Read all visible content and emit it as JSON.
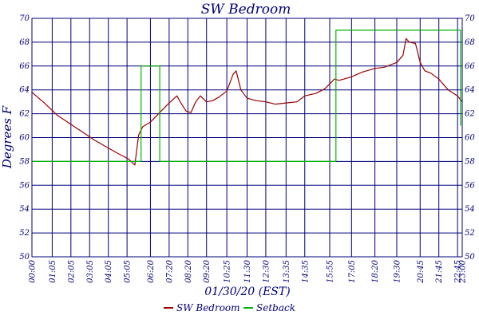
{
  "chart_data": {
    "type": "line",
    "title": "SW Bedroom",
    "ylabel": "Degrees F",
    "xlabel": "01/30/20 (EST)",
    "ylim": [
      50,
      70
    ],
    "yticks": [
      50,
      52,
      54,
      56,
      58,
      60,
      62,
      64,
      66,
      68,
      70
    ],
    "xlim": [
      "00:00",
      "23:00"
    ],
    "xticks": [
      "00:00",
      "01:05",
      "02:05",
      "03:05",
      "04:05",
      "05:05",
      "06:20",
      "07:20",
      "08:20",
      "09:20",
      "10:25",
      "11:30",
      "12:30",
      "13:35",
      "14:35",
      "15:55",
      "17:05",
      "18:20",
      "19:30",
      "20:45",
      "21:45",
      "22:45",
      "23:00"
    ],
    "grid": true,
    "legend_position": "bottom-center",
    "series": [
      {
        "name": "SW Bedroom",
        "color": "#9a0000",
        "points": [
          [
            "00:00",
            63.8
          ],
          [
            "00:40",
            62.9
          ],
          [
            "01:20",
            61.9
          ],
          [
            "02:00",
            61.2
          ],
          [
            "02:40",
            60.5
          ],
          [
            "03:20",
            59.8
          ],
          [
            "04:00",
            59.2
          ],
          [
            "04:40",
            58.6
          ],
          [
            "05:10",
            58.2
          ],
          [
            "05:30",
            57.7
          ],
          [
            "05:42",
            60.2
          ],
          [
            "05:55",
            60.9
          ],
          [
            "06:20",
            61.3
          ],
          [
            "06:50",
            62.1
          ],
          [
            "07:20",
            62.9
          ],
          [
            "07:45",
            63.5
          ],
          [
            "08:00",
            62.8
          ],
          [
            "08:15",
            62.2
          ],
          [
            "08:30",
            62.1
          ],
          [
            "08:45",
            63.0
          ],
          [
            "09:00",
            63.5
          ],
          [
            "09:20",
            63.0
          ],
          [
            "09:40",
            63.1
          ],
          [
            "10:00",
            63.4
          ],
          [
            "10:25",
            63.9
          ],
          [
            "10:45",
            65.3
          ],
          [
            "10:55",
            65.6
          ],
          [
            "11:10",
            64.0
          ],
          [
            "11:30",
            63.3
          ],
          [
            "12:00",
            63.1
          ],
          [
            "12:30",
            63.0
          ],
          [
            "13:00",
            62.8
          ],
          [
            "13:35",
            62.9
          ],
          [
            "14:10",
            63.0
          ],
          [
            "14:35",
            63.5
          ],
          [
            "15:10",
            63.7
          ],
          [
            "15:40",
            64.1
          ],
          [
            "15:55",
            64.5
          ],
          [
            "16:10",
            64.9
          ],
          [
            "16:25",
            64.8
          ],
          [
            "16:40",
            64.9
          ],
          [
            "17:05",
            65.1
          ],
          [
            "17:40",
            65.5
          ],
          [
            "18:20",
            65.8
          ],
          [
            "18:50",
            65.9
          ],
          [
            "19:30",
            66.3
          ],
          [
            "19:50",
            66.9
          ],
          [
            "20:00",
            68.3
          ],
          [
            "20:10",
            68.0
          ],
          [
            "20:30",
            67.9
          ],
          [
            "20:45",
            66.3
          ],
          [
            "21:00",
            65.6
          ],
          [
            "21:20",
            65.4
          ],
          [
            "21:45",
            64.9
          ],
          [
            "22:15",
            64.0
          ],
          [
            "22:45",
            63.5
          ],
          [
            "23:00",
            63.0
          ]
        ]
      },
      {
        "name": "Setback",
        "color": "#00b400",
        "points": [
          [
            "00:00",
            58
          ],
          [
            "05:50",
            58
          ],
          [
            "05:50",
            66
          ],
          [
            "06:50",
            66
          ],
          [
            "06:50",
            58
          ],
          [
            "16:15",
            58
          ],
          [
            "16:15",
            69
          ],
          [
            "22:55",
            69
          ],
          [
            "22:55",
            61.0
          ]
        ]
      }
    ]
  }
}
